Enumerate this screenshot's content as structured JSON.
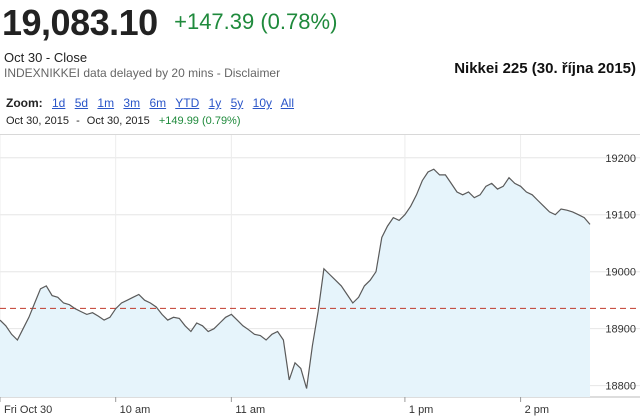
{
  "header": {
    "price": "19,083.10",
    "change": "+147.39 (0.78%)",
    "close_label": "Oct 30 - Close",
    "source": "INDEXNIKKEI data delayed by 20 mins - Disclaimer",
    "caption": "Nikkei 225 (30. října 2015)"
  },
  "zoom": {
    "label": "Zoom:",
    "options": [
      "1d",
      "5d",
      "1m",
      "3m",
      "6m",
      "YTD",
      "1y",
      "5y",
      "10y",
      "All"
    ]
  },
  "range": {
    "from": "Oct 30, 2015",
    "dash": "-",
    "to": "Oct 30, 2015",
    "change": "+149.99 (0.79%)"
  },
  "colors": {
    "up": "#1f8a3c",
    "line": "#5a5a5a",
    "fill": "#e6f4fb",
    "reference": "#c0392b",
    "link": "#2a55c8"
  },
  "chart_data": {
    "type": "line",
    "x_unit": "minutes since market open",
    "x_ticks": [
      {
        "label": "Fri Oct 30",
        "x": 0
      },
      {
        "label": "10 am",
        "x": 60
      },
      {
        "label": "11 am",
        "x": 120
      },
      {
        "label": "1 pm",
        "x": 210
      },
      {
        "label": "2 pm",
        "x": 270
      }
    ],
    "y_ticks": [
      18800,
      18900,
      19000,
      19100,
      19200
    ],
    "ylim": [
      18780,
      19240
    ],
    "previous_close": 18935.71,
    "series": [
      {
        "values": [
          [
            0,
            18915
          ],
          [
            3,
            18905
          ],
          [
            6,
            18890
          ],
          [
            9,
            18880
          ],
          [
            12,
            18900
          ],
          [
            15,
            18920
          ],
          [
            18,
            18945
          ],
          [
            21,
            18970
          ],
          [
            24,
            18975
          ],
          [
            27,
            18958
          ],
          [
            30,
            18955
          ],
          [
            33,
            18945
          ],
          [
            36,
            18942
          ],
          [
            39,
            18935
          ],
          [
            42,
            18930
          ],
          [
            45,
            18925
          ],
          [
            48,
            18928
          ],
          [
            51,
            18922
          ],
          [
            54,
            18915
          ],
          [
            57,
            18920
          ],
          [
            60,
            18935
          ],
          [
            63,
            18945
          ],
          [
            66,
            18950
          ],
          [
            69,
            18955
          ],
          [
            72,
            18960
          ],
          [
            75,
            18950
          ],
          [
            78,
            18945
          ],
          [
            81,
            18938
          ],
          [
            84,
            18925
          ],
          [
            87,
            18915
          ],
          [
            90,
            18920
          ],
          [
            93,
            18918
          ],
          [
            96,
            18905
          ],
          [
            99,
            18895
          ],
          [
            102,
            18910
          ],
          [
            105,
            18905
          ],
          [
            108,
            18895
          ],
          [
            111,
            18900
          ],
          [
            114,
            18910
          ],
          [
            117,
            18920
          ],
          [
            120,
            18925
          ],
          [
            123,
            18915
          ],
          [
            126,
            18905
          ],
          [
            129,
            18898
          ],
          [
            132,
            18890
          ],
          [
            135,
            18888
          ],
          [
            138,
            18880
          ],
          [
            141,
            18890
          ],
          [
            144,
            18895
          ],
          [
            147,
            18880
          ],
          [
            150,
            18810
          ],
          [
            153,
            18840
          ],
          [
            156,
            18830
          ],
          [
            159,
            18795
          ],
          [
            162,
            18870
          ],
          [
            165,
            18930
          ],
          [
            168,
            19005
          ],
          [
            171,
            18995
          ],
          [
            174,
            18985
          ],
          [
            177,
            18975
          ],
          [
            180,
            18960
          ],
          [
            183,
            18945
          ],
          [
            186,
            18955
          ],
          [
            189,
            18975
          ],
          [
            192,
            18985
          ],
          [
            195,
            19000
          ],
          [
            198,
            19060
          ],
          [
            201,
            19080
          ],
          [
            204,
            19095
          ],
          [
            207,
            19090
          ],
          [
            210,
            19100
          ],
          [
            213,
            19115
          ],
          [
            216,
            19135
          ],
          [
            219,
            19160
          ],
          [
            222,
            19175
          ],
          [
            225,
            19180
          ],
          [
            228,
            19170
          ],
          [
            231,
            19170
          ],
          [
            234,
            19155
          ],
          [
            237,
            19140
          ],
          [
            240,
            19135
          ],
          [
            243,
            19140
          ],
          [
            246,
            19130
          ],
          [
            249,
            19135
          ],
          [
            252,
            19150
          ],
          [
            255,
            19155
          ],
          [
            258,
            19145
          ],
          [
            261,
            19150
          ],
          [
            264,
            19165
          ],
          [
            267,
            19155
          ],
          [
            270,
            19150
          ],
          [
            273,
            19140
          ],
          [
            276,
            19135
          ],
          [
            279,
            19125
          ],
          [
            282,
            19115
          ],
          [
            285,
            19105
          ],
          [
            288,
            19100
          ],
          [
            291,
            19110
          ],
          [
            294,
            19108
          ],
          [
            297,
            19105
          ],
          [
            300,
            19100
          ],
          [
            303,
            19095
          ],
          [
            306,
            19083
          ]
        ]
      }
    ],
    "grid": true
  }
}
